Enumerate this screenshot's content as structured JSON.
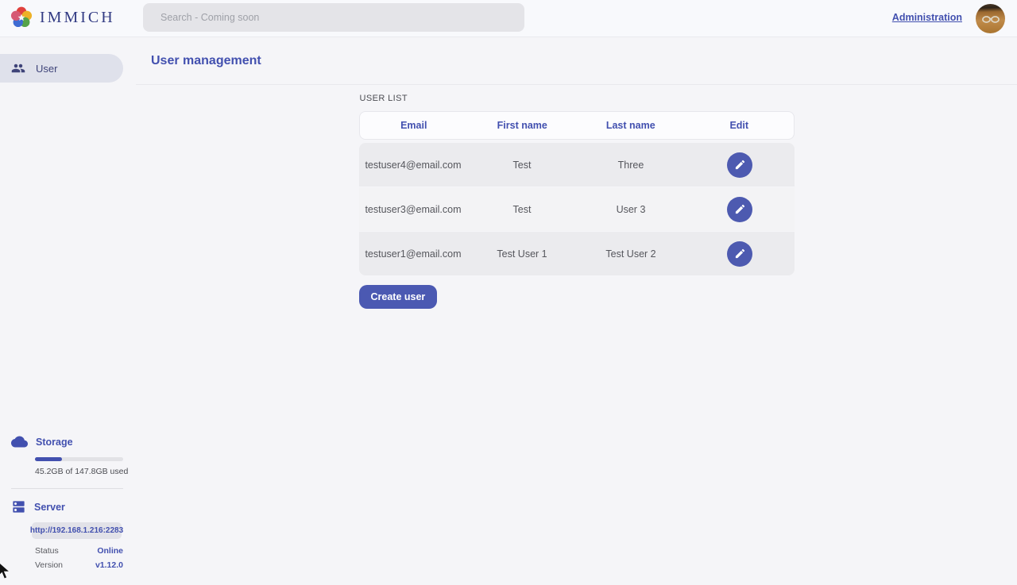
{
  "app": {
    "primary_color": "#4250af"
  },
  "topbar": {
    "logo_label": "IMMICH",
    "search": {
      "placeholder": "Search - Coming soon"
    },
    "admin_link": "Administration"
  },
  "sidebar": {
    "items": [
      {
        "label": "User",
        "icon": "users-group-icon",
        "active": true
      }
    ],
    "storage": {
      "title": "Storage",
      "icon": "cloud-icon",
      "usage_text": "45.2GB of 147.8GB used",
      "percent_used": 30.6
    },
    "server": {
      "title": "Server",
      "icon": "server-icon",
      "url": "http://192.168.1.216:2283",
      "rows": [
        {
          "label": "Status",
          "value": "Online"
        },
        {
          "label": "Version",
          "value": "v1.12.0"
        }
      ]
    }
  },
  "page": {
    "title": "User management",
    "section_label": "USER LIST",
    "table": {
      "columns": [
        "Email",
        "First name",
        "Last name",
        "Edit"
      ],
      "rows": [
        {
          "email": "testuser4@email.com",
          "first_name": "Test",
          "last_name": "Three"
        },
        {
          "email": "testuser3@email.com",
          "first_name": "Test",
          "last_name": "User 3"
        },
        {
          "email": "testuser1@email.com",
          "first_name": "Test User 1",
          "last_name": "Test User 2"
        }
      ]
    },
    "create_button": "Create user"
  }
}
